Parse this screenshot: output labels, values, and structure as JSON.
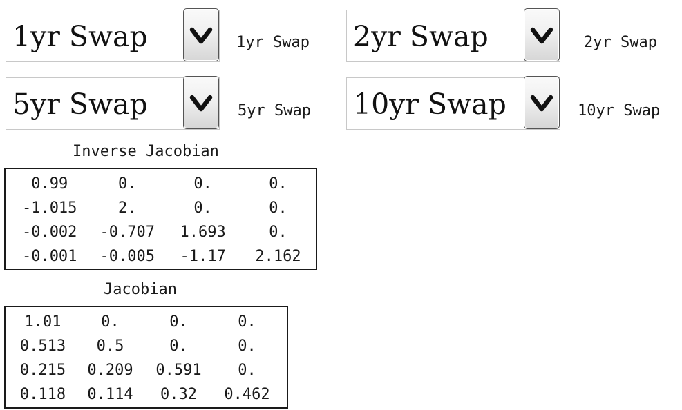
{
  "selectors": [
    {
      "value": "1yr Swap",
      "label": "1yr Swap"
    },
    {
      "value": "2yr Swap",
      "label": "2yr Swap"
    },
    {
      "value": "5yr Swap",
      "label": "5yr Swap"
    },
    {
      "value": "10yr Swap",
      "label": "10yr Swap"
    }
  ],
  "inverse_jacobian": {
    "title": "Inverse Jacobian",
    "rows": [
      [
        "0.99",
        "0.",
        "0.",
        "0."
      ],
      [
        "-1.015",
        "2.",
        "0.",
        "0."
      ],
      [
        "-0.002",
        "-0.707",
        "1.693",
        "0."
      ],
      [
        "-0.001",
        "-0.005",
        "-1.17",
        "2.162"
      ]
    ]
  },
  "jacobian": {
    "title": "Jacobian",
    "rows": [
      [
        "1.01",
        "0.",
        "0.",
        "0."
      ],
      [
        "0.513",
        "0.5",
        "0.",
        "0."
      ],
      [
        "0.215",
        "0.209",
        "0.591",
        "0."
      ],
      [
        "0.118",
        "0.114",
        "0.32",
        "0.462"
      ]
    ]
  },
  "icons": {
    "dropdown": "chevron-down-icon"
  }
}
